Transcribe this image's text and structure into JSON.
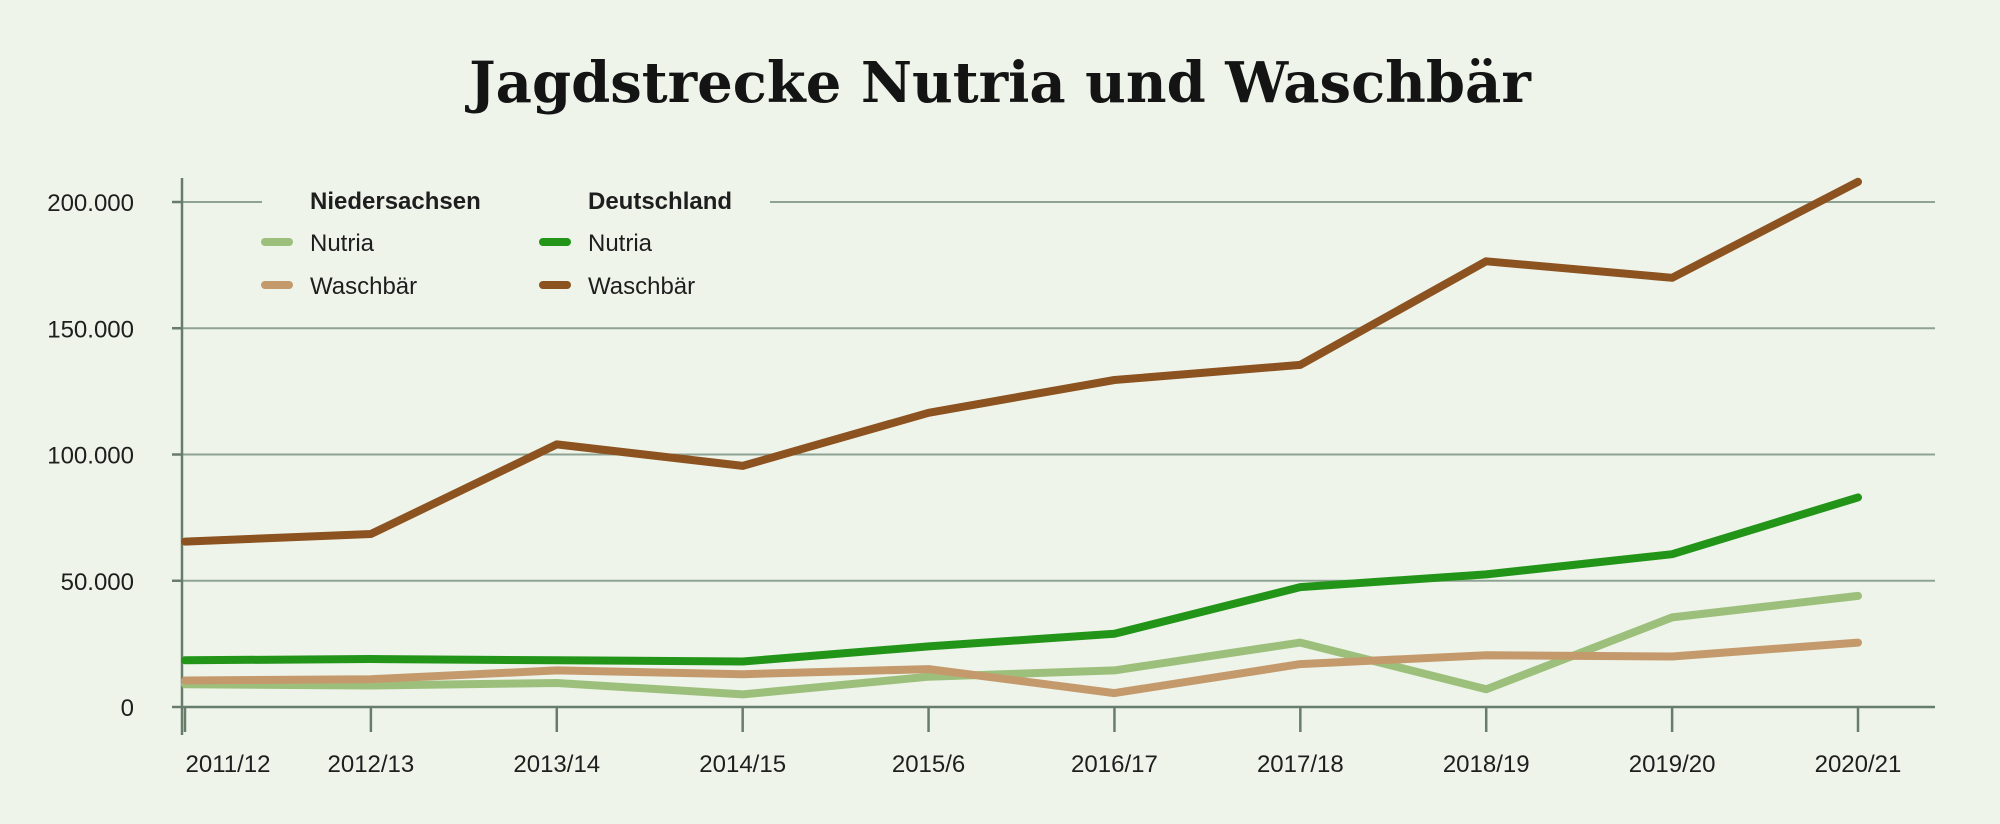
{
  "chart_data": {
    "type": "line",
    "title": "Jagdstrecke Nutria und Waschbär",
    "xlabel": "",
    "ylabel": "",
    "categories": [
      "2011/12",
      "2012/13",
      "2013/14",
      "2014/15",
      "2015/6",
      "2016/17",
      "2017/18",
      "2018/19",
      "2019/20",
      "2020/21"
    ],
    "y_tick_labels": [
      "0",
      "50.000",
      "100.000",
      "150.000",
      "200.000"
    ],
    "y_ticks": [
      0,
      50000,
      100000,
      150000,
      200000
    ],
    "ylim": [
      0,
      210000
    ],
    "grid": true,
    "legend": {
      "placement": "top-left",
      "groups": [
        {
          "title": "Niedersachsen",
          "entries": [
            "Nutria",
            "Waschbär"
          ]
        },
        {
          "title": "Deutschland",
          "entries": [
            "Nutria",
            "Waschbär"
          ]
        }
      ]
    },
    "series": [
      {
        "name": "Nutria",
        "group": "Niedersachsen",
        "color": "#9cc07c",
        "values": [
          9000,
          8500,
          9500,
          5000,
          12000,
          14500,
          25500,
          7000,
          35500,
          44000
        ]
      },
      {
        "name": "Waschbär",
        "group": "Niedersachsen",
        "color": "#c49a6c",
        "values": [
          10500,
          11000,
          14500,
          13000,
          15000,
          5500,
          17000,
          20500,
          20000,
          25500
        ]
      },
      {
        "name": "Nutria",
        "group": "Deutschland",
        "color": "#229418",
        "values": [
          18500,
          19000,
          18500,
          18000,
          24000,
          29000,
          47500,
          52500,
          60500,
          83000
        ]
      },
      {
        "name": "Waschbär",
        "group": "Deutschland",
        "color": "#8c5220",
        "values": [
          65500,
          68500,
          104000,
          95500,
          116500,
          129500,
          135500,
          176500,
          170000,
          208000
        ]
      }
    ]
  }
}
